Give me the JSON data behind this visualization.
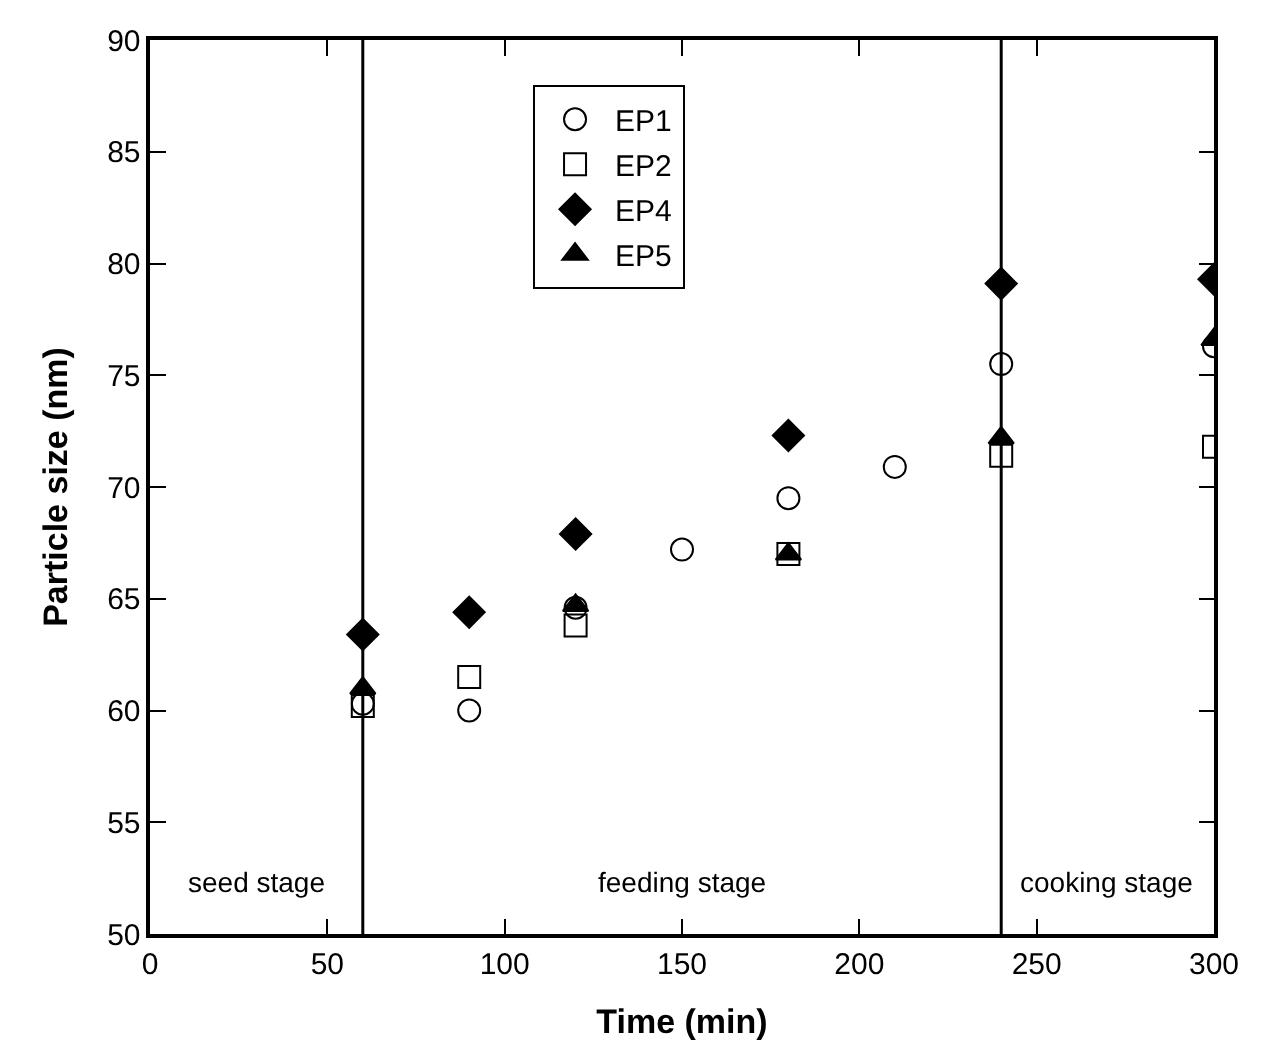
{
  "chart_data": {
    "type": "scatter",
    "xlabel": "Time (min)",
    "ylabel": "Particle size (nm)",
    "xlim": [
      0,
      300
    ],
    "xticks": [
      0,
      50,
      100,
      150,
      200,
      250,
      300
    ],
    "ylim": [
      50,
      90
    ],
    "yticks": [
      50,
      55,
      60,
      65,
      70,
      75,
      80,
      85,
      90
    ],
    "legend": "top left",
    "series": [
      {
        "name": "EP1",
        "color": "#000000",
        "marker": "circle-open",
        "x": [
          60,
          90,
          120,
          150,
          180,
          210,
          240,
          300
        ],
        "values": [
          60.3,
          60.0,
          64.6,
          67.2,
          69.5,
          70.9,
          75.5,
          76.3
        ]
      },
      {
        "name": "EP2",
        "color": "#000000",
        "marker": "square-open",
        "x": [
          60,
          90,
          120,
          180,
          240,
          300
        ],
        "values": [
          60.2,
          61.5,
          63.8,
          67.0,
          71.4,
          71.8
        ]
      },
      {
        "name": "EP4",
        "color": "#000000",
        "marker": "diamond",
        "x": [
          60,
          90,
          120,
          180,
          240,
          300
        ],
        "values": [
          63.4,
          64.4,
          67.9,
          72.3,
          79.1,
          79.3
        ]
      },
      {
        "name": "EP5",
        "color": "#000000",
        "marker": "triangle",
        "x": [
          60,
          120,
          180,
          240,
          300
        ],
        "values": [
          61.0,
          64.7,
          67.0,
          72.2,
          76.6
        ]
      }
    ],
    "ref_lines": [
      {
        "axis": "x",
        "value": 60,
        "color": "#000000"
      },
      {
        "axis": "x",
        "value": 240,
        "color": "#000000"
      }
    ],
    "annotations": [
      "seed stage",
      "feeding stage",
      "cooking stage"
    ]
  }
}
